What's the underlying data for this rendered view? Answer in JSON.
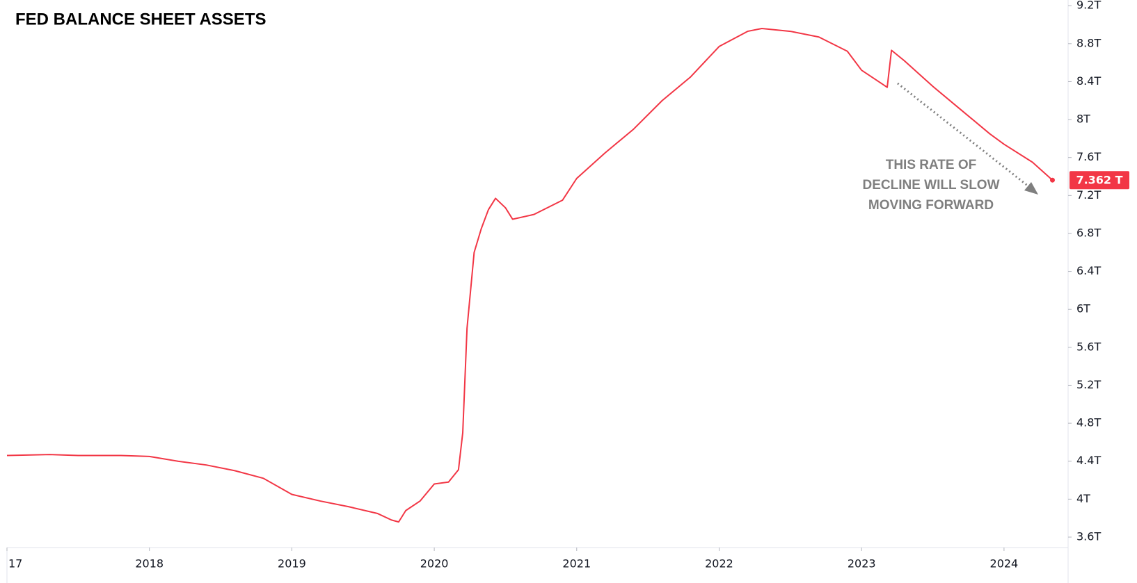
{
  "chart_data": {
    "type": "line",
    "title": "FED BALANCE SHEET ASSETS",
    "x": [
      2017.0,
      2017.3,
      2017.5,
      2017.8,
      2018.0,
      2018.2,
      2018.4,
      2018.6,
      2018.8,
      2019.0,
      2019.2,
      2019.4,
      2019.6,
      2019.7,
      2019.75,
      2019.8,
      2019.9,
      2020.0,
      2020.1,
      2020.17,
      2020.2,
      2020.23,
      2020.28,
      2020.33,
      2020.38,
      2020.43,
      2020.5,
      2020.55,
      2020.7,
      2020.9,
      2021.0,
      2021.2,
      2021.4,
      2021.6,
      2021.8,
      2022.0,
      2022.2,
      2022.3,
      2022.5,
      2022.7,
      2022.9,
      2023.0,
      2023.18,
      2023.21,
      2023.3,
      2023.5,
      2023.7,
      2023.9,
      2024.0,
      2024.2,
      2024.34
    ],
    "series": [
      {
        "name": "Fed balance sheet assets",
        "color": "#f23645",
        "values": [
          4.46,
          4.47,
          4.46,
          4.46,
          4.45,
          4.4,
          4.36,
          4.3,
          4.22,
          4.05,
          3.98,
          3.92,
          3.85,
          3.78,
          3.76,
          3.88,
          3.98,
          4.16,
          4.18,
          4.31,
          4.7,
          5.8,
          6.6,
          6.85,
          7.05,
          7.17,
          7.07,
          6.95,
          7.0,
          7.15,
          7.38,
          7.65,
          7.9,
          8.2,
          8.45,
          8.77,
          8.93,
          8.96,
          8.93,
          8.87,
          8.72,
          8.52,
          8.34,
          8.73,
          8.62,
          8.35,
          8.1,
          7.85,
          7.74,
          7.55,
          7.362
        ]
      }
    ],
    "last_value": {
      "value": 7.362,
      "label": "7.362 T"
    },
    "xlim": [
      2017.0,
      2024.45
    ],
    "xticks": [
      {
        "value": 2017,
        "label": "17"
      },
      2018,
      2019,
      2020,
      2021,
      2022,
      2023,
      2024
    ],
    "ylim": [
      3.49,
      9.26
    ],
    "yticks": [
      {
        "value": 3.6,
        "label": "3.6T"
      },
      {
        "value": 4,
        "label": "4T"
      },
      {
        "value": 4.4,
        "label": "4.4T"
      },
      {
        "value": 4.8,
        "label": "4.8T"
      },
      {
        "value": 5.2,
        "label": "5.2T"
      },
      {
        "value": 5.6,
        "label": "5.6T"
      },
      {
        "value": 6,
        "label": "6T"
      },
      {
        "value": 6.4,
        "label": "6.4T"
      },
      {
        "value": 6.8,
        "label": "6.8T"
      },
      {
        "value": 7.2,
        "label": "7.2T"
      },
      {
        "value": 7.6,
        "label": "7.6T"
      },
      {
        "value": 8,
        "label": "8T"
      },
      {
        "value": 8.4,
        "label": "8.4T"
      },
      {
        "value": 8.8,
        "label": "8.8T"
      },
      {
        "value": 9.2,
        "label": "9.2T"
      }
    ],
    "annotation": [
      "THIS RATE OF",
      "DECLINE WILL SLOW",
      "MOVING FORWARD"
    ],
    "grid": false
  }
}
